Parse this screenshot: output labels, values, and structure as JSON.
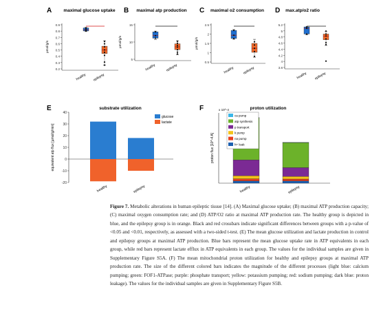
{
  "figure": {
    "panels": [
      {
        "letter": "A",
        "title": "maximal glucose uptake",
        "ylabel": "µmol/g/s",
        "yticks": [
          "0.9",
          "0.8",
          "0.7",
          "0.6",
          "0.5",
          "0.4",
          "0.3",
          "0.2"
        ]
      },
      {
        "letter": "B",
        "title": "maximal atp production",
        "ylabel": "µmol/g/s",
        "yticks": [
          "15",
          "10",
          "5"
        ]
      },
      {
        "letter": "C",
        "title": "maximal o2 consumption",
        "ylabel": "µmol/g/s",
        "yticks": [
          "2.5",
          "2",
          "1.5",
          "1",
          "0.5"
        ]
      },
      {
        "letter": "D",
        "title": "max.atp/o2 ratio",
        "ylabel": "",
        "yticks": [
          "5.2",
          "5",
          "4.8",
          "4.6",
          "4.4",
          "4.2",
          "4",
          "3.8"
        ]
      },
      {
        "letter": "E",
        "title": "substrate utilization",
        "ylabel": "equivalent atp flux [µmol/g/min]",
        "yticks": [
          "40",
          "30",
          "20",
          "10",
          "0",
          "-10",
          "-20"
        ]
      },
      {
        "letter": "F",
        "title": "proton utilization",
        "ylabel": "proton flux [10^-4 A]",
        "exponent": "x 10^-4",
        "yticks": []
      }
    ],
    "groups": [
      "healthy",
      "epilepsy"
    ],
    "legend_E": [
      "glucose",
      "lactate"
    ],
    "legend_F": [
      "ca pump",
      "atp synthesis",
      "p transport",
      "k pump",
      "na pump",
      "h+ leak"
    ]
  },
  "chart_data": [
    {
      "type": "box",
      "panel": "A",
      "title": "maximal glucose uptake",
      "ylabel": "µmol/g/s",
      "ylim": [
        0.2,
        0.9
      ],
      "series": [
        {
          "name": "healthy",
          "q1": 0.81,
          "median": 0.83,
          "q3": 0.86,
          "min": 0.8,
          "max": 0.87,
          "points": [
            0.81,
            0.83,
            0.85,
            0.86
          ]
        },
        {
          "name": "epilepsy",
          "q1": 0.44,
          "median": 0.5,
          "q3": 0.56,
          "min": 0.25,
          "max": 0.65,
          "points": [
            0.25,
            0.3,
            0.41,
            0.46,
            0.5,
            0.55,
            0.6,
            0.64
          ]
        }
      ]
    },
    {
      "type": "box",
      "panel": "B",
      "title": "maximal atp production",
      "ylabel": "µmol/g/s",
      "ylim": [
        2,
        15
      ],
      "series": [
        {
          "name": "healthy",
          "q1": 10,
          "median": 11,
          "q3": 12.5,
          "min": 9.5,
          "max": 12.8,
          "points": [
            10,
            11,
            12.5
          ]
        },
        {
          "name": "epilepsy",
          "q1": 5.5,
          "median": 6.6,
          "q3": 7.8,
          "min": 3.5,
          "max": 9,
          "points": [
            3.8,
            4.5,
            5.5,
            6.5,
            7.2,
            8,
            8.8
          ]
        }
      ]
    },
    {
      "type": "box",
      "panel": "C",
      "title": "maximal o2 consumption",
      "ylabel": "µmol/g/s",
      "ylim": [
        0.5,
        2.7
      ],
      "series": [
        {
          "name": "healthy",
          "q1": 1.9,
          "median": 2.1,
          "q3": 2.4,
          "min": 1.85,
          "max": 2.45,
          "points": [
            1.9,
            2.1,
            2.4
          ]
        },
        {
          "name": "epilepsy",
          "q1": 1.05,
          "median": 1.3,
          "q3": 1.6,
          "min": 0.75,
          "max": 1.85,
          "points": [
            0.8,
            1.1,
            1.3,
            1.5,
            1.7
          ]
        }
      ]
    },
    {
      "type": "box",
      "panel": "D",
      "title": "max.atp/o2 ratio",
      "ylabel": "",
      "ylim": [
        3.8,
        5.25
      ],
      "series": [
        {
          "name": "healthy",
          "q1": 4.95,
          "median": 5.15,
          "q3": 5.2,
          "min": 4.92,
          "max": 5.2,
          "points": [
            4.95,
            5.15,
            5.2
          ]
        },
        {
          "name": "epilepsy",
          "q1": 4.75,
          "median": 4.88,
          "q3": 4.95,
          "min": 4.55,
          "max": 5.05,
          "points": [
            4.0,
            4.58,
            4.65,
            4.78,
            4.88,
            4.95,
            5.05
          ]
        }
      ]
    },
    {
      "type": "bar",
      "panel": "E",
      "title": "substrate utilization",
      "ylabel": "equivalent atp flux [µmol/g/min]",
      "ylim": [
        -20,
        40
      ],
      "categories": [
        "healthy",
        "epilepsy"
      ],
      "series": [
        {
          "name": "glucose",
          "color": "#2a7dd0",
          "values": [
            32,
            18
          ]
        },
        {
          "name": "lactate",
          "color": "#f0622b",
          "values": [
            -19,
            -10
          ]
        }
      ]
    },
    {
      "type": "bar",
      "panel": "F",
      "title": "proton utilization",
      "ylabel": "proton flux [10^-4 A]",
      "stacked": true,
      "categories": [
        "healthy",
        "epilepsy"
      ],
      "series": [
        {
          "name": "h+ leak",
          "color": "#1d60b0",
          "values": [
            0.25,
            0.25
          ]
        },
        {
          "name": "na pump",
          "color": "#e8401e",
          "values": [
            0.25,
            0.22
          ]
        },
        {
          "name": "k pump",
          "color": "#f4c31a",
          "values": [
            0.35,
            0.3
          ]
        },
        {
          "name": "p transport",
          "color": "#7b2a94",
          "values": [
            1.8,
            1.0
          ]
        },
        {
          "name": "atp synthesis",
          "color": "#6cb22a",
          "values": [
            4.8,
            2.85
          ]
        },
        {
          "name": "ca pump",
          "color": "#3ab6e8",
          "values": [
            0.02,
            0.02
          ]
        }
      ]
    }
  ],
  "caption": {
    "label": "Figure 7.",
    "text": "Metabolic alterations in human epileptic tissue [14]. (A) Maximal glucose uptake; (B) maximal ATP production capacity; (C) maximal oxygen consumption rate; and (D) ATP/O2 ratio at maximal ATP production rate. The healthy group is depicted in blue, and the epilepsy group is in orange. Black and red crossbars indicate significant differences between groups with a p-value of <0.05 and <0.01, respectively, as assessed with a two-sided t-test. (E) The mean glucose utilization and lactate production in control and epilepsy groups at maximal ATP production. Blue bars represent the mean glucose uptake rate in ATP equivalents in each group, while red bars represent lactate efflux in ATP equivalents in each group. The values for the individual samples are given in Supplementary Figure S5A. (F) The mean mitochondrial proton utilization for healthy and epilepsy groups at maximal ATP production rate. The size of the different colored bars indicates the magnitude of the different processes (light blue: calcium pumping; green: FOF1-ATPase; purple: phosphate transport; yellow: potassium pumping; red: sodium pumping; dark blue: proton leakage). The values for the individual samples are given in Supplementary Figure S5B."
  }
}
